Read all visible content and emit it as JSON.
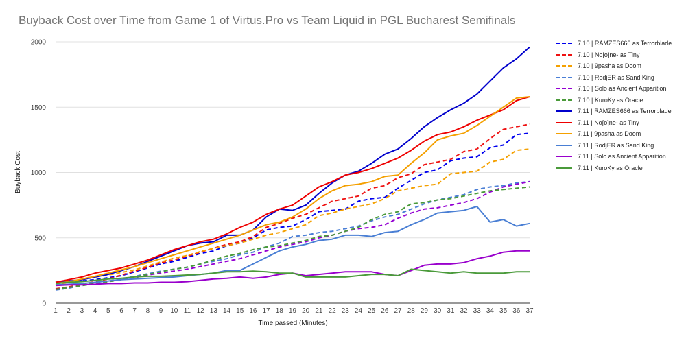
{
  "chart_data": {
    "type": "line",
    "title": "Buyback Cost over Time from Game 1 of Virtus.Pro vs Team Liquid in PGL Bucharest Semifinals",
    "xlabel": "Time passed (Minutes)",
    "ylabel": "Buyback Cost",
    "ylim": [
      0,
      2000
    ],
    "yticks": [
      0,
      500,
      1000,
      1500,
      2000
    ],
    "categories": [
      1,
      2,
      3,
      4,
      5,
      6,
      7,
      8,
      9,
      10,
      11,
      12,
      13,
      14,
      15,
      16,
      17,
      18,
      19,
      20,
      21,
      22,
      23,
      24,
      25,
      26,
      27,
      28,
      29,
      30,
      31,
      32,
      33,
      34,
      35,
      36,
      37
    ],
    "grid": true,
    "legend_position": "right",
    "series": [
      {
        "name": "7.10 | RAMZES666 as Terrorblade",
        "color": "#0000ee",
        "dashed": true,
        "values": [
          150,
          160,
          170,
          180,
          195,
          210,
          240,
          270,
          300,
          320,
          350,
          380,
          400,
          440,
          460,
          500,
          560,
          580,
          590,
          640,
          700,
          710,
          720,
          780,
          800,
          810,
          880,
          940,
          1000,
          1020,
          1090,
          1110,
          1120,
          1190,
          1210,
          1290,
          1300
        ]
      },
      {
        "name": "7.10 | No[o]ne- as Tiny",
        "color": "#ee1111",
        "dashed": true,
        "values": [
          110,
          125,
          145,
          165,
          185,
          215,
          245,
          275,
          310,
          330,
          360,
          390,
          420,
          450,
          470,
          510,
          580,
          610,
          650,
          680,
          730,
          780,
          800,
          820,
          880,
          900,
          960,
          990,
          1060,
          1080,
          1100,
          1160,
          1180,
          1260,
          1330,
          1350,
          1370
        ]
      },
      {
        "name": "7.10 | 9pasha as Doom",
        "color": "#f4a000",
        "dashed": true,
        "values": [
          140,
          160,
          180,
          200,
          215,
          235,
          255,
          285,
          315,
          345,
          365,
          395,
          420,
          440,
          460,
          490,
          520,
          540,
          570,
          600,
          670,
          690,
          720,
          740,
          760,
          800,
          860,
          880,
          900,
          910,
          990,
          1000,
          1010,
          1080,
          1100,
          1170,
          1180
        ]
      },
      {
        "name": "7.10 | RodjER as Sand King",
        "color": "#4b7fd6",
        "dashed": true,
        "values": [
          100,
          115,
          135,
          155,
          170,
          185,
          205,
          225,
          245,
          260,
          275,
          300,
          320,
          340,
          370,
          390,
          430,
          460,
          510,
          520,
          540,
          550,
          570,
          590,
          630,
          660,
          680,
          720,
          760,
          790,
          810,
          830,
          870,
          890,
          900,
          920,
          930
        ]
      },
      {
        "name": "7.10 | Solo as Ancient Apparition",
        "color": "#9400d3",
        "dashed": true,
        "values": [
          105,
          120,
          135,
          150,
          165,
          180,
          195,
          215,
          230,
          245,
          260,
          280,
          300,
          320,
          340,
          370,
          400,
          430,
          450,
          470,
          500,
          520,
          550,
          570,
          580,
          600,
          650,
          690,
          720,
          730,
          750,
          770,
          800,
          850,
          890,
          910,
          930
        ]
      },
      {
        "name": "7.10 | KuroKy as Oracle",
        "color": "#4a9a3a",
        "dashed": true,
        "values": [
          105,
          120,
          135,
          150,
          165,
          180,
          200,
          220,
          240,
          260,
          275,
          300,
          330,
          360,
          380,
          410,
          430,
          440,
          460,
          480,
          510,
          520,
          550,
          580,
          640,
          680,
          700,
          760,
          770,
          790,
          800,
          820,
          840,
          860,
          870,
          880,
          890
        ]
      },
      {
        "name": "7.11 | RAMZES666 as Terrorblade",
        "color": "#0000cc",
        "dashed": false,
        "values": [
          160,
          170,
          180,
          200,
          220,
          250,
          280,
          320,
          360,
          400,
          440,
          460,
          470,
          520,
          520,
          560,
          660,
          720,
          710,
          750,
          840,
          920,
          980,
          1010,
          1070,
          1140,
          1180,
          1260,
          1350,
          1420,
          1480,
          1530,
          1600,
          1700,
          1800,
          1870,
          1960
        ]
      },
      {
        "name": "7.11 | No[o]ne- as Tiny",
        "color": "#ee0000",
        "dashed": false,
        "values": [
          160,
          180,
          200,
          230,
          250,
          270,
          300,
          330,
          370,
          410,
          440,
          470,
          490,
          530,
          580,
          620,
          680,
          720,
          750,
          820,
          890,
          930,
          980,
          1000,
          1030,
          1070,
          1110,
          1170,
          1240,
          1290,
          1310,
          1350,
          1400,
          1440,
          1480,
          1550,
          1580
        ]
      },
      {
        "name": "7.11 | 9pasha as Doom",
        "color": "#f4a000",
        "dashed": false,
        "values": [
          150,
          165,
          185,
          205,
          230,
          255,
          280,
          310,
          340,
          370,
          400,
          430,
          460,
          490,
          520,
          560,
          600,
          620,
          660,
          720,
          800,
          860,
          900,
          910,
          930,
          970,
          980,
          1070,
          1150,
          1250,
          1280,
          1300,
          1360,
          1430,
          1500,
          1570,
          1580
        ]
      },
      {
        "name": "7.11 | RodjER as Sand King",
        "color": "#4a7fd4",
        "dashed": false,
        "values": [
          140,
          145,
          150,
          160,
          170,
          180,
          185,
          190,
          195,
          200,
          210,
          220,
          230,
          250,
          250,
          300,
          350,
          400,
          430,
          450,
          480,
          490,
          520,
          520,
          510,
          540,
          550,
          600,
          640,
          690,
          700,
          710,
          740,
          620,
          640,
          590,
          610
        ]
      },
      {
        "name": "7.11 | Solo as Ancient Apparition",
        "color": "#9900cc",
        "dashed": false,
        "values": [
          135,
          140,
          140,
          145,
          150,
          150,
          155,
          155,
          160,
          160,
          165,
          175,
          185,
          190,
          200,
          190,
          200,
          220,
          230,
          210,
          220,
          230,
          240,
          240,
          240,
          220,
          210,
          250,
          290,
          300,
          300,
          310,
          340,
          360,
          390,
          400,
          400
        ]
      },
      {
        "name": "7.11 | KuroKy as Oracle",
        "color": "#4a9a3a",
        "dashed": false,
        "values": [
          150,
          160,
          165,
          175,
          185,
          190,
          200,
          205,
          205,
          210,
          215,
          220,
          230,
          240,
          240,
          245,
          240,
          230,
          230,
          200,
          200,
          200,
          200,
          210,
          220,
          220,
          210,
          260,
          250,
          240,
          230,
          240,
          230,
          230,
          230,
          240,
          240
        ]
      }
    ]
  }
}
